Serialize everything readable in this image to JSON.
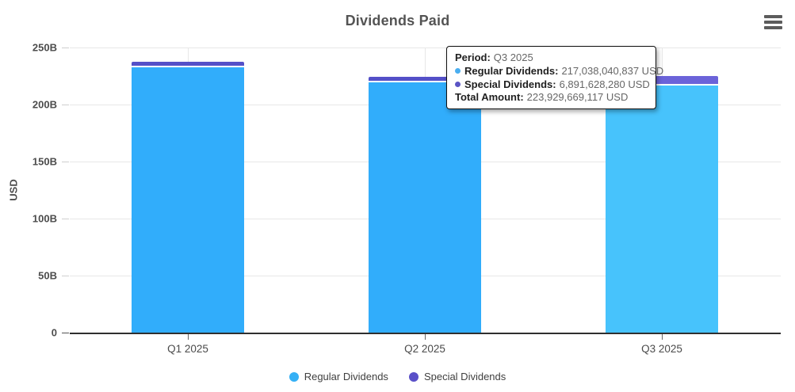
{
  "title": "Dividends Paid",
  "y_axis": {
    "label": "USD",
    "ticks": [
      "250B",
      "200B",
      "150B",
      "100B",
      "50B",
      "0"
    ]
  },
  "x_axis": {
    "categories": [
      "Q1 2025",
      "Q2 2025",
      "Q3 2025"
    ]
  },
  "legend": [
    {
      "label": "Regular Dividends",
      "color": "#35b0f5"
    },
    {
      "label": "Special Dividends",
      "color": "#5a50c8"
    }
  ],
  "tooltip": {
    "period_label": "Period:",
    "period_value": "Q3 2025",
    "rows": [
      {
        "label": "Regular Dividends:",
        "value": "217,038,040,837 USD",
        "color": "#4aaef0"
      },
      {
        "label": "Special Dividends:",
        "value": "6,891,628,280 USD",
        "color": "#5b55c5"
      }
    ],
    "total_label": "Total Amount:",
    "total_value": "223,929,669,117 USD"
  },
  "chart_data": {
    "type": "bar",
    "stacked": true,
    "title": "Dividends Paid",
    "ylabel": "USD",
    "ylim": [
      0,
      250000000000
    ],
    "grid": true,
    "legend_position": "bottom",
    "categories": [
      "Q1 2025",
      "Q2 2025",
      "Q3 2025"
    ],
    "series": [
      {
        "name": "Regular Dividends",
        "color": "#31adfb",
        "hover_color": "#47c3fc",
        "values": [
          232800000000,
          219600000000,
          217038040837
        ]
      },
      {
        "name": "Special Dividends",
        "color": "#5450c8",
        "hover_color": "#6b63d9",
        "values": [
          3500000000,
          3100000000,
          6891628280
        ]
      }
    ],
    "highlighted_category": "Q3 2025",
    "tooltip_shown_for": "Q3 2025"
  }
}
